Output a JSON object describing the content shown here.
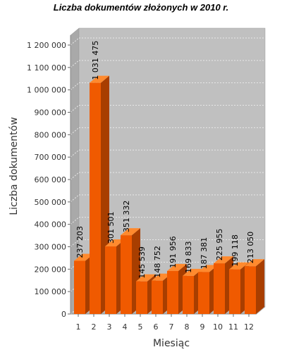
{
  "chart_data": {
    "type": "bar",
    "title": "Liczba dokumentów złożonych w 2010 r.",
    "xlabel": "Miesiąc",
    "ylabel": "Liczba dokumentów",
    "categories": [
      "1",
      "2",
      "3",
      "4",
      "5",
      "6",
      "7",
      "8",
      "9",
      "10",
      "11",
      "12"
    ],
    "values": [
      237203,
      1031475,
      301501,
      351332,
      145539,
      148752,
      191956,
      169833,
      187381,
      225955,
      199118,
      213050
    ],
    "value_labels": [
      "237 203",
      "1 031 475",
      "301 501",
      "351 332",
      "145 539",
      "148 752",
      "191 956",
      "169 833",
      "187 381",
      "225 955",
      "199 118",
      "213 050"
    ],
    "yticks": [
      0,
      100000,
      200000,
      300000,
      400000,
      500000,
      600000,
      700000,
      800000,
      900000,
      1000000,
      1100000,
      1200000
    ],
    "ytick_labels": [
      "0",
      "100 000",
      "200 000",
      "300 000",
      "400 000",
      "500 000",
      "600 000",
      "700 000",
      "800 000",
      "900 000",
      "1 000 000",
      "1 100 000",
      "1 200 000"
    ],
    "ylim": [
      0,
      1200000
    ],
    "grid": true,
    "style": "3d",
    "colors": {
      "bar_front": "#F05A00",
      "bar_top": "#FF8A2E",
      "bar_side": "#A83E00",
      "plot_back": "#C0C0C0",
      "plot_side": "#A9A9A9",
      "plot_floor": "#B5B5B5",
      "grid": "#E8E8E8"
    }
  }
}
